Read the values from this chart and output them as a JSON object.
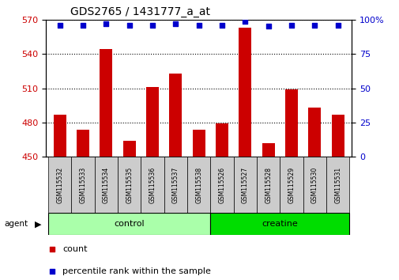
{
  "title": "GDS2765 / 1431777_a_at",
  "samples": [
    "GSM115532",
    "GSM115533",
    "GSM115534",
    "GSM115535",
    "GSM115536",
    "GSM115537",
    "GSM115538",
    "GSM115526",
    "GSM115527",
    "GSM115528",
    "GSM115529",
    "GSM115530",
    "GSM115531"
  ],
  "counts": [
    487,
    474,
    544,
    464,
    511,
    523,
    474,
    479,
    563,
    462,
    509,
    493,
    487
  ],
  "percentiles": [
    96,
    96,
    97,
    96,
    96,
    97,
    96,
    96,
    99,
    95,
    96,
    96,
    96
  ],
  "n_control": 7,
  "n_creatine": 6,
  "bar_color": "#CC0000",
  "dot_color": "#0000CC",
  "ylim_left": [
    450,
    570
  ],
  "ylim_right": [
    0,
    100
  ],
  "yticks_left": [
    450,
    480,
    510,
    540,
    570
  ],
  "yticks_right": [
    0,
    25,
    50,
    75,
    100
  ],
  "ylabel_left_color": "#CC0000",
  "ylabel_right_color": "#0000CC",
  "control_color": "#AAFFAA",
  "creatine_color": "#00DD00",
  "tick_area_color": "#CCCCCC",
  "agent_label": "agent",
  "legend_count_label": "count",
  "legend_pct_label": "percentile rank within the sample"
}
